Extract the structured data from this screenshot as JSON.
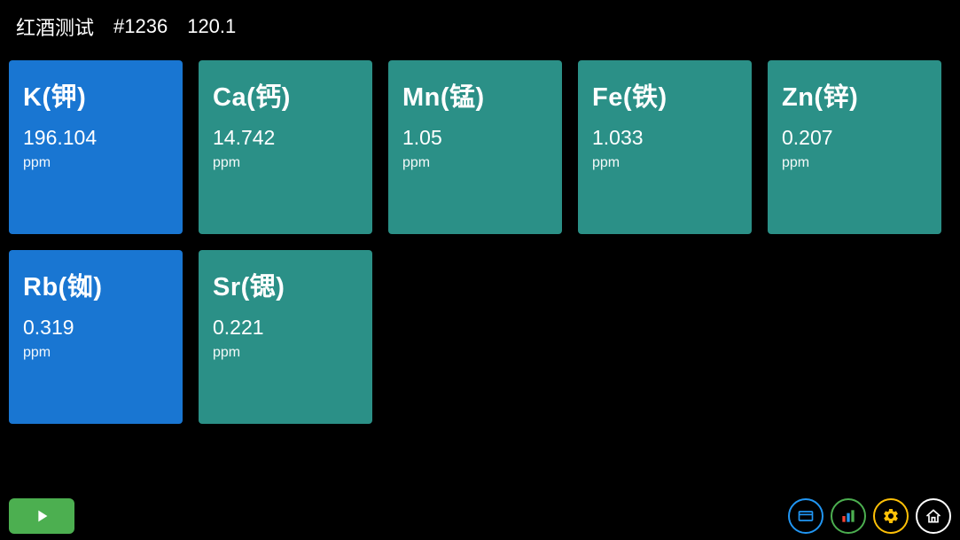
{
  "header": {
    "title": "红酒测试",
    "id": "#1236",
    "version": "120.1"
  },
  "colors": {
    "blue": "#1976d2",
    "teal": "#2b9087",
    "play_green": "#4caf50",
    "icon_blue": "#2196f3",
    "icon_green": "#4caf50",
    "icon_yellow": "#ffc107",
    "icon_white": "#ffffff"
  },
  "cards": [
    {
      "name": "K(钾)",
      "value": "196.104",
      "unit": "ppm",
      "color": "blue"
    },
    {
      "name": "Ca(钙)",
      "value": "14.742",
      "unit": "ppm",
      "color": "teal"
    },
    {
      "name": "Mn(锰)",
      "value": "1.05",
      "unit": "ppm",
      "color": "teal"
    },
    {
      "name": "Fe(铁)",
      "value": "1.033",
      "unit": "ppm",
      "color": "teal"
    },
    {
      "name": "Zn(锌)",
      "value": "0.207",
      "unit": "ppm",
      "color": "teal"
    },
    {
      "name": "Rb(铷)",
      "value": "0.319",
      "unit": "ppm",
      "color": "blue"
    },
    {
      "name": "Sr(锶)",
      "value": "0.221",
      "unit": "ppm",
      "color": "teal"
    }
  ]
}
